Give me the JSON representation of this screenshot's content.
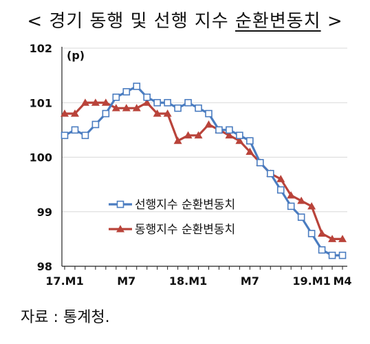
{
  "title": {
    "prefix": "< 경기 동행 및 선행 지수 ",
    "underlined": "순환변동치",
    "suffix": " >"
  },
  "source": "자료 : 통계청.",
  "colors": {
    "leading": "#4A7CC0",
    "coincident": "#B9433A",
    "axis": "#222222"
  },
  "chart_data": {
    "type": "line",
    "unit": "(p)",
    "ylim": [
      98,
      102
    ],
    "y_ticks": [
      "98",
      "99",
      "100",
      "101",
      "102"
    ],
    "x_ticks": [
      {
        "label": "17.M1",
        "index": 0
      },
      {
        "label": "M7",
        "index": 6
      },
      {
        "label": "18.M1",
        "index": 12
      },
      {
        "label": "M7",
        "index": 18
      },
      {
        "label": "19.M1",
        "index": 24
      },
      {
        "label": "M4",
        "index": 27
      }
    ],
    "grid": true,
    "legend_position": "center-left",
    "series": [
      {
        "name": "선행지수 순환변동치",
        "marker": "square",
        "values": [
          100.4,
          100.5,
          100.4,
          100.6,
          100.8,
          101.1,
          101.2,
          101.3,
          101.1,
          101.0,
          101.0,
          100.9,
          101.0,
          100.9,
          100.8,
          100.5,
          100.5,
          100.4,
          100.3,
          99.9,
          99.7,
          99.4,
          99.1,
          98.9,
          98.6,
          98.3,
          98.2,
          98.2
        ]
      },
      {
        "name": "동행지수 순환변동치",
        "marker": "triangle",
        "values": [
          100.8,
          100.8,
          101.0,
          101.0,
          101.0,
          100.9,
          100.9,
          100.9,
          101.0,
          100.8,
          100.8,
          100.3,
          100.4,
          100.4,
          100.6,
          100.5,
          100.4,
          100.3,
          100.1,
          99.9,
          99.7,
          99.6,
          99.3,
          99.2,
          99.1,
          98.6,
          98.5,
          98.5
        ]
      }
    ]
  }
}
